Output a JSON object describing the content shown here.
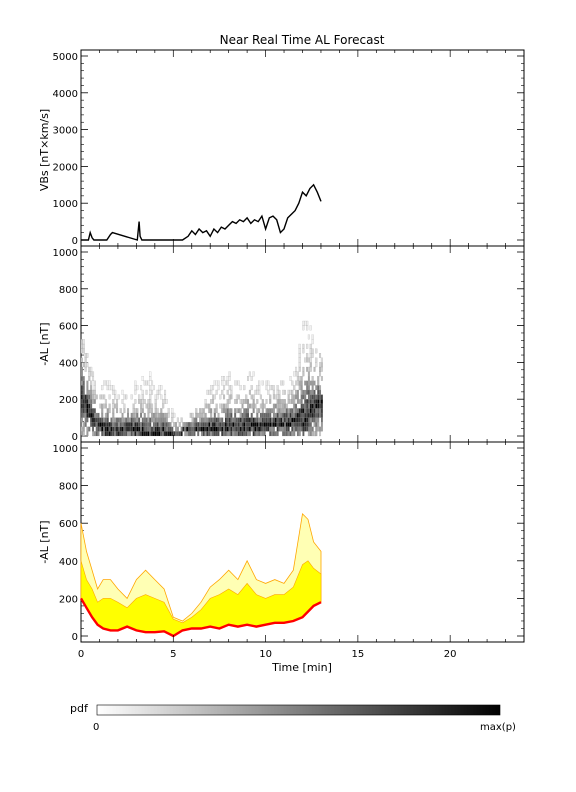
{
  "title": "Near Real Time AL Forecast",
  "xlabel": "Time [min]",
  "x_ticks": [
    0,
    5,
    10,
    15,
    20
  ],
  "x_range": [
    0,
    24
  ],
  "colorbar": {
    "label": "pdf",
    "min_label": "0",
    "max_label": "max(p)"
  },
  "colors": {
    "vbs_line": "#000000",
    "median_line": "#ff0000",
    "band_outline": "#ffa500",
    "band_fill": "#ffff00",
    "band_outer_fill": "#ffffb4"
  },
  "chart_data": [
    {
      "type": "line",
      "ylabel": "VBs [nT×km/s]",
      "ylim": [
        0,
        5000
      ],
      "y_ticks": [
        0,
        1000,
        2000,
        3000,
        4000,
        5000
      ],
      "x": [
        0.0,
        0.4,
        0.5,
        0.6,
        0.7,
        1.4,
        1.6,
        1.7,
        3.05,
        3.15,
        3.2,
        3.3,
        5.5,
        5.8,
        6.0,
        6.2,
        6.4,
        6.6,
        6.8,
        7.0,
        7.2,
        7.4,
        7.6,
        7.8,
        8.0,
        8.2,
        8.4,
        8.6,
        8.8,
        9.0,
        9.2,
        9.4,
        9.6,
        9.8,
        10.0,
        10.2,
        10.4,
        10.6,
        10.8,
        11.0,
        11.2,
        11.4,
        11.6,
        11.8,
        12.0,
        12.2,
        12.4,
        12.6,
        12.8,
        13.0
      ],
      "y": [
        0,
        0,
        200,
        60,
        0,
        0,
        150,
        200,
        0,
        500,
        100,
        0,
        0,
        100,
        250,
        150,
        300,
        200,
        250,
        100,
        300,
        200,
        350,
        300,
        400,
        500,
        450,
        550,
        500,
        600,
        450,
        550,
        500,
        650,
        300,
        600,
        650,
        550,
        200,
        300,
        600,
        700,
        800,
        1000,
        1300,
        1200,
        1400,
        1500,
        1300,
        1050
      ]
    },
    {
      "type": "heatmap",
      "ylabel": "-AL [nT]",
      "ylim": [
        0,
        1000
      ],
      "y_ticks": [
        0,
        200,
        400,
        600,
        800,
        1000
      ],
      "x_range": [
        0,
        13
      ],
      "median_x": [
        0.0,
        0.3,
        0.6,
        0.9,
        1.2,
        1.6,
        2.0,
        2.5,
        3.0,
        3.5,
        4.0,
        4.5,
        5.0,
        5.5,
        6.0,
        6.5,
        7.0,
        7.5,
        8.0,
        8.5,
        9.0,
        9.5,
        10.0,
        10.5,
        11.0,
        11.5,
        12.0,
        12.3,
        12.6,
        13.0
      ],
      "median_y": [
        200,
        150,
        100,
        60,
        40,
        30,
        30,
        50,
        30,
        20,
        20,
        25,
        0,
        30,
        40,
        40,
        50,
        40,
        60,
        50,
        60,
        50,
        60,
        70,
        70,
        80,
        100,
        130,
        160,
        180
      ],
      "upper_y": [
        600,
        450,
        350,
        250,
        300,
        300,
        250,
        200,
        300,
        350,
        300,
        250,
        100,
        80,
        120,
        180,
        260,
        300,
        350,
        300,
        400,
        300,
        280,
        300,
        280,
        350,
        650,
        620,
        500,
        450
      ]
    },
    {
      "type": "area",
      "ylabel": "-AL [nT]",
      "ylim": [
        0,
        1000
      ],
      "y_ticks": [
        0,
        200,
        400,
        600,
        800,
        1000
      ],
      "x": [
        0.0,
        0.3,
        0.6,
        0.9,
        1.2,
        1.6,
        2.0,
        2.5,
        3.0,
        3.5,
        4.0,
        4.5,
        5.0,
        5.5,
        6.0,
        6.5,
        7.0,
        7.5,
        8.0,
        8.5,
        9.0,
        9.5,
        10.0,
        10.5,
        11.0,
        11.5,
        12.0,
        12.3,
        12.6,
        13.0
      ],
      "median": [
        200,
        150,
        100,
        60,
        40,
        30,
        30,
        50,
        30,
        20,
        20,
        25,
        0,
        30,
        40,
        40,
        50,
        40,
        60,
        50,
        60,
        50,
        60,
        70,
        70,
        80,
        100,
        130,
        160,
        180
      ],
      "upper": [
        600,
        450,
        350,
        250,
        300,
        300,
        250,
        200,
        300,
        350,
        300,
        250,
        100,
        80,
        120,
        180,
        260,
        300,
        350,
        300,
        400,
        300,
        280,
        300,
        280,
        350,
        650,
        620,
        500,
        450
      ],
      "inner_upper": [
        400,
        300,
        250,
        180,
        200,
        200,
        180,
        150,
        200,
        220,
        200,
        180,
        90,
        70,
        100,
        140,
        200,
        220,
        250,
        220,
        280,
        220,
        200,
        220,
        220,
        260,
        380,
        400,
        360,
        330
      ]
    }
  ]
}
